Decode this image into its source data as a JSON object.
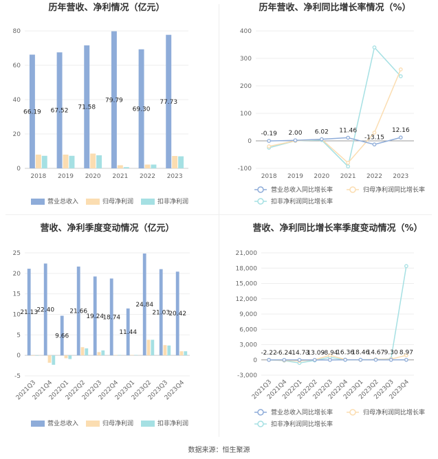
{
  "source_text": "数据来源：恒生聚源",
  "colors": {
    "revenue": "#8eacd9",
    "net_profit": "#fbddb1",
    "deducted_profit": "#a5e0e3",
    "axis": "#cccccc",
    "grid": "#eeeeee"
  },
  "chart_data": [
    {
      "id": "annual-amount",
      "type": "bar",
      "title": "历年营收、净利情况（亿元）",
      "categories": [
        "2018",
        "2019",
        "2020",
        "2021",
        "2022",
        "2023"
      ],
      "ylim": [
        0,
        80
      ],
      "yticks": [
        0,
        20,
        40,
        60,
        80
      ],
      "series": [
        {
          "name": "营业总收入",
          "values": [
            66.19,
            67.52,
            71.58,
            79.79,
            69.3,
            77.73
          ],
          "labels": [
            "66.19",
            "67.52",
            "71.58",
            "79.79",
            "69.30",
            "77.73"
          ]
        },
        {
          "name": "归母净利润",
          "values": [
            8.0,
            8.0,
            8.6,
            1.8,
            2.2,
            7.2
          ]
        },
        {
          "name": "扣非净利润",
          "values": [
            7.3,
            7.3,
            7.6,
            0.7,
            2.2,
            7.0
          ]
        }
      ]
    },
    {
      "id": "annual-growth",
      "type": "line",
      "title": "历年营收、净利同比增长率情况（%）",
      "categories": [
        "2018",
        "2019",
        "2020",
        "2021",
        "2022",
        "2023"
      ],
      "ylim": [
        -100,
        400
      ],
      "yticks": [
        -100,
        0,
        100,
        200,
        300,
        400
      ],
      "series": [
        {
          "name": "营业总收入同比增长率",
          "values": [
            -0.19,
            2.0,
            6.02,
            11.46,
            -13.15,
            12.16
          ],
          "labels": [
            "-0.19",
            "2.00",
            "6.02",
            "11.46",
            "-13.15",
            "12.16"
          ]
        },
        {
          "name": "归母净利润同比增长率",
          "values": [
            -20,
            0,
            6,
            -80,
            30,
            260
          ]
        },
        {
          "name": "扣非净利润同比增长率",
          "values": [
            -25,
            0,
            3,
            -93,
            340,
            235
          ]
        }
      ]
    },
    {
      "id": "quarterly-amount",
      "type": "bar",
      "title": "营收、净利季度变动情况（亿元）",
      "categories": [
        "2021Q3",
        "2021Q4",
        "2022Q1",
        "2022Q2",
        "2022Q3",
        "2022Q4",
        "2023Q1",
        "2023Q2",
        "2023Q3",
        "2023Q4"
      ],
      "ylim": [
        -5,
        25
      ],
      "yticks": [
        -5,
        0,
        5,
        10,
        15,
        20,
        25
      ],
      "series": [
        {
          "name": "营业总收入",
          "values": [
            21.13,
            22.4,
            9.66,
            21.66,
            19.24,
            18.74,
            11.44,
            24.84,
            21.03,
            20.42
          ],
          "labels": [
            "21.13",
            "22.40",
            "9.66",
            "21.66",
            "19.24",
            "18.74",
            "11.44",
            "24.84",
            "21.03",
            "20.42"
          ]
        },
        {
          "name": "归母净利润",
          "values": [
            0,
            -1.8,
            -0.7,
            2.0,
            0.8,
            0.1,
            0.1,
            3.8,
            2.5,
            1.0
          ]
        },
        {
          "name": "扣非净利润",
          "values": [
            0,
            -2.3,
            -0.9,
            1.7,
            1.2,
            0.1,
            0.1,
            3.8,
            2.4,
            1.0
          ]
        }
      ]
    },
    {
      "id": "quarterly-growth",
      "type": "line",
      "title": "营收、净利同比增长率季度变动情况（%）",
      "categories": [
        "2021Q3",
        "2021Q4",
        "2022Q1",
        "2022Q2",
        "2022Q3",
        "2022Q4",
        "2023Q1",
        "2023Q2",
        "2023Q3",
        "2023Q4"
      ],
      "ylim": [
        -3000,
        21000
      ],
      "yticks": [
        -3000,
        0,
        3000,
        6000,
        9000,
        12000,
        15000,
        18000,
        21000
      ],
      "ytick_labels": [
        "-3,000",
        "0",
        "3,000",
        "6,000",
        "9,000",
        "12,000",
        "15,000",
        "18,000",
        "21,000"
      ],
      "series": [
        {
          "name": "营业总收入同比增长率",
          "values": [
            -2.22,
            -6.24,
            -14.73,
            -13.09,
            -8.94,
            16.36,
            18.46,
            14.67,
            9.3,
            8.97
          ],
          "labels": [
            "-2.22",
            "-6.24",
            "-14.73",
            "-13.09",
            "-8.94",
            "16.36",
            "18.46",
            "14.67",
            "9.30",
            "8.97"
          ]
        },
        {
          "name": "归母净利润同比增长率",
          "values": [
            0,
            -100,
            -200,
            0,
            900,
            50,
            0,
            100,
            150,
            900
          ]
        },
        {
          "name": "扣非净利润同比增长率",
          "values": [
            0,
            -150,
            -600,
            -100,
            500,
            0,
            0,
            100,
            200,
            18400
          ]
        }
      ]
    }
  ]
}
